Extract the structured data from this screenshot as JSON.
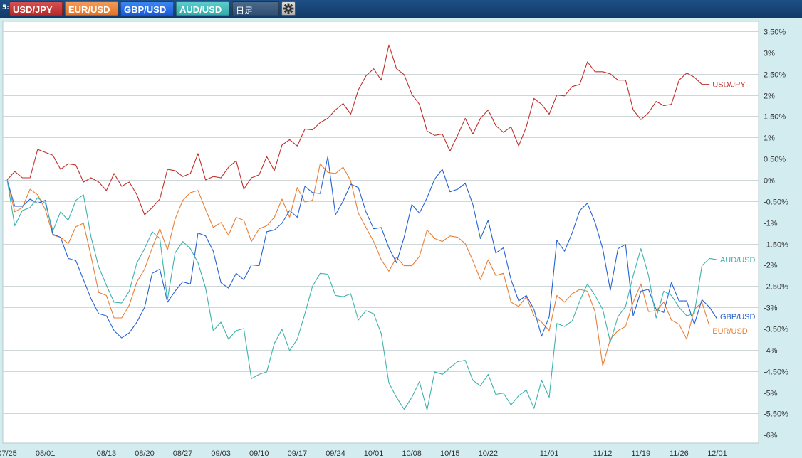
{
  "toolbar": {
    "lead": "5:",
    "tabs": [
      {
        "label": "USD/JPY"
      },
      {
        "label": "EUR/USD"
      },
      {
        "label": "GBP/USD"
      },
      {
        "label": "AUD/USD"
      },
      {
        "label": "日足"
      }
    ],
    "settings_icon": "gear-icon"
  },
  "chart_data": {
    "type": "line",
    "ylim": [
      -6.3,
      3.6
    ],
    "y_ticks": [
      3.5,
      3,
      2.5,
      2,
      1.5,
      1,
      0.5,
      0,
      -0.5,
      -1,
      -1.5,
      -2,
      -2.5,
      -3,
      -3.5,
      -4,
      -4.5,
      -5,
      -5.5,
      -6
    ],
    "y_tick_labels": [
      "3.50%",
      "3%",
      "2.50%",
      "2%",
      "1.50%",
      "1%",
      "0.50%",
      "0%",
      "-0.50%",
      "-1%",
      "-1.50%",
      "-2%",
      "-2.50%",
      "-3%",
      "-3.50%",
      "-4%",
      "-4.50%",
      "-5%",
      "-5.50%",
      "-6%"
    ],
    "x_ticks": [
      {
        "label": "07/25",
        "index": 0
      },
      {
        "label": "08/01",
        "index": 5
      },
      {
        "label": "08/13",
        "index": 13
      },
      {
        "label": "08/20",
        "index": 18
      },
      {
        "label": "08/27",
        "index": 23
      },
      {
        "label": "09/03",
        "index": 28
      },
      {
        "label": "09/10",
        "index": 33
      },
      {
        "label": "09/17",
        "index": 38
      },
      {
        "label": "09/24",
        "index": 43
      },
      {
        "label": "10/01",
        "index": 48
      },
      {
        "label": "10/08",
        "index": 53
      },
      {
        "label": "10/15",
        "index": 58
      },
      {
        "label": "10/22",
        "index": 63
      },
      {
        "label": "11/01",
        "index": 71
      },
      {
        "label": "11/12",
        "index": 78
      },
      {
        "label": "11/19",
        "index": 83
      },
      {
        "label": "11/26",
        "index": 88
      },
      {
        "label": "12/01",
        "index": 93
      }
    ],
    "series": [
      {
        "name": "USD/JPY",
        "color": "#c0302a",
        "values": [
          0,
          0.2,
          0.05,
          0.05,
          0.72,
          0.65,
          0.58,
          0.25,
          0.38,
          0.35,
          -0.05,
          0.05,
          -0.05,
          -0.25,
          0.15,
          -0.15,
          -0.05,
          -0.35,
          -0.82,
          -0.65,
          -0.45,
          0.25,
          0.22,
          0.08,
          0.15,
          0.62,
          0,
          0.08,
          0.05,
          0.3,
          0.45,
          -0.22,
          0.05,
          0.12,
          0.55,
          0.22,
          0.82,
          0.95,
          0.8,
          1.2,
          1.18,
          1.35,
          1.45,
          1.65,
          1.8,
          1.55,
          2.12,
          2.45,
          2.62,
          2.35,
          3.18,
          2.62,
          2.48,
          2.02,
          1.78,
          1.15,
          1.05,
          1.08,
          0.68,
          1.05,
          1.45,
          1.08,
          1.45,
          1.65,
          1.28,
          1.12,
          1.25,
          0.8,
          1.25,
          1.92,
          1.78,
          1.55,
          2.0,
          1.98,
          2.2,
          2.25,
          2.78,
          2.55,
          2.55,
          2.5,
          2.35,
          2.35,
          1.65,
          1.42,
          1.58,
          1.85,
          1.75,
          1.78,
          2.35,
          2.52,
          2.42,
          2.25,
          2.25
        ]
      },
      {
        "name": "EUR/USD",
        "color": "#e87f35",
        "values": [
          0,
          -0.75,
          -0.65,
          -0.22,
          -0.35,
          -0.7,
          -1.3,
          -1.35,
          -1.5,
          -1.1,
          -1.02,
          -1.8,
          -2.65,
          -2.72,
          -3.25,
          -3.25,
          -2.95,
          -2.4,
          -2.1,
          -1.6,
          -1.15,
          -1.65,
          -0.92,
          -0.48,
          -0.3,
          -0.25,
          -0.7,
          -1.12,
          -1.0,
          -1.3,
          -0.88,
          -0.95,
          -1.45,
          -1.15,
          -1.08,
          -0.88,
          -0.45,
          -0.88,
          -0.18,
          -0.52,
          -0.48,
          0.38,
          0.18,
          0.15,
          0.3,
          -0.02,
          -0.78,
          -1.12,
          -1.45,
          -1.88,
          -2.15,
          -1.82,
          -2.02,
          -2.02,
          -1.8,
          -1.18,
          -1.38,
          -1.45,
          -1.32,
          -1.35,
          -1.5,
          -1.9,
          -2.35,
          -1.88,
          -2.25,
          -2.2,
          -2.88,
          -2.98,
          -2.75,
          -3.2,
          -3.35,
          -3.55,
          -2.72,
          -2.88,
          -2.68,
          -2.58,
          -2.62,
          -3.1,
          -4.38,
          -3.75,
          -3.55,
          -3.45,
          -2.88,
          -2.45,
          -3.1,
          -3.08,
          -2.88,
          -3.3,
          -3.4,
          -3.75,
          -3.05,
          -2.88,
          -3.45
        ]
      },
      {
        "name": "GBP/USD",
        "color": "#2562d3",
        "values": [
          0,
          -0.62,
          -0.62,
          -0.45,
          -0.55,
          -0.48,
          -1.28,
          -1.35,
          -1.85,
          -1.9,
          -2.35,
          -2.8,
          -3.15,
          -3.2,
          -3.55,
          -3.72,
          -3.6,
          -3.35,
          -3.0,
          -2.2,
          -2.1,
          -2.88,
          -2.62,
          -2.4,
          -2.45,
          -1.25,
          -1.32,
          -1.68,
          -2.42,
          -2.55,
          -2.2,
          -2.35,
          -2.0,
          -2.02,
          -1.22,
          -1.18,
          -1.02,
          -0.72,
          -0.88,
          -0.15,
          -0.3,
          -0.32,
          0.55,
          -0.82,
          -0.5,
          -0.1,
          -0.18,
          -0.75,
          -1.15,
          -1.12,
          -1.6,
          -1.95,
          -1.35,
          -0.58,
          -0.78,
          -0.42,
          0.02,
          0.25,
          -0.28,
          -0.22,
          -0.08,
          -0.58,
          -1.38,
          -0.95,
          -1.72,
          -1.6,
          -2.35,
          -2.85,
          -2.72,
          -3.05,
          -3.68,
          -3.22,
          -1.42,
          -1.68,
          -1.25,
          -0.72,
          -0.55,
          -1.0,
          -1.62,
          -2.6,
          -1.62,
          -1.52,
          -3.2,
          -2.62,
          -2.58,
          -3.05,
          -3.12,
          -2.42,
          -2.85,
          -2.85,
          -3.4,
          -2.82,
          -3.0,
          -3.28
        ]
      },
      {
        "name": "AUD/USD",
        "color": "#3eb2ac",
        "values": [
          0,
          -1.08,
          -0.72,
          -0.65,
          -0.42,
          -0.55,
          -1.2,
          -0.75,
          -0.95,
          -0.48,
          -0.35,
          -1.35,
          -2.05,
          -2.48,
          -2.88,
          -2.9,
          -2.62,
          -1.95,
          -1.62,
          -1.22,
          -1.38,
          -2.82,
          -1.72,
          -1.45,
          -1.62,
          -1.95,
          -2.55,
          -3.55,
          -3.35,
          -3.75,
          -3.55,
          -3.5,
          -4.68,
          -4.58,
          -4.52,
          -3.85,
          -3.52,
          -4.02,
          -3.75,
          -3.15,
          -2.5,
          -2.2,
          -2.22,
          -2.72,
          -2.75,
          -2.68,
          -3.3,
          -3.08,
          -3.15,
          -3.62,
          -4.78,
          -5.12,
          -5.4,
          -5.12,
          -4.75,
          -5.42,
          -4.52,
          -4.58,
          -4.42,
          -4.28,
          -4.25,
          -4.72,
          -4.85,
          -4.58,
          -5.05,
          -5.02,
          -5.3,
          -5.08,
          -4.95,
          -5.38,
          -4.72,
          -5.12,
          -3.38,
          -3.45,
          -3.32,
          -2.85,
          -2.45,
          -2.72,
          -3.05,
          -3.82,
          -3.22,
          -2.98,
          -2.25,
          -1.62,
          -2.25,
          -3.25,
          -2.62,
          -2.72,
          -3.0,
          -3.2,
          -3.15,
          -2.02,
          -1.85,
          -1.88
        ]
      }
    ]
  }
}
